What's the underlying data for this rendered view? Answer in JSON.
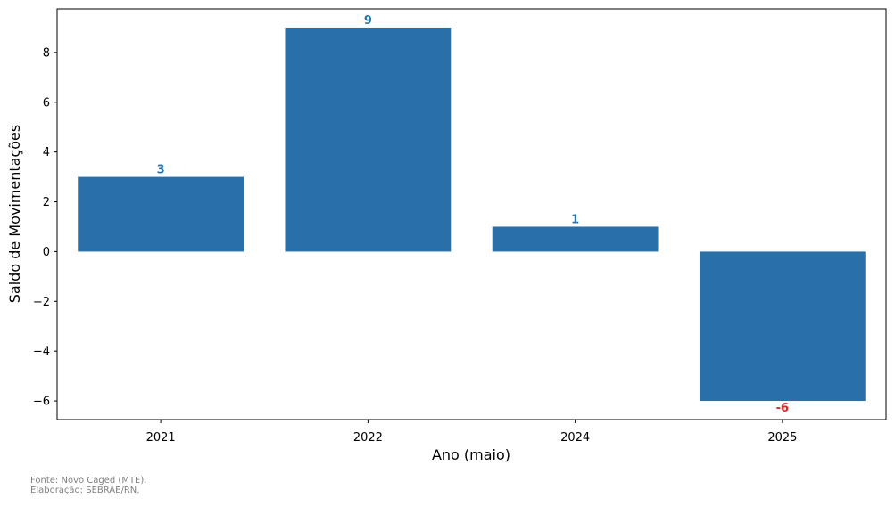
{
  "chart_data": {
    "type": "bar",
    "categories": [
      "2021",
      "2022",
      "2024",
      "2025"
    ],
    "values": [
      3,
      9,
      1,
      -6
    ],
    "data_labels": [
      "3",
      "9",
      "1",
      "-6"
    ],
    "xlabel": "Ano (maio)",
    "ylabel": "Saldo de Movimentações",
    "ylim": [
      -6.75,
      9.75
    ],
    "yticks": [
      8,
      6,
      4,
      2,
      0,
      -2,
      -4,
      -6
    ],
    "ytick_labels": [
      "8",
      "6",
      "4",
      "2",
      "0",
      "−2",
      "−4",
      "−6"
    ],
    "grid": false,
    "bar_color": "#2a70a8",
    "positive_label_color": "#1f77b4",
    "negative_label_color": "#d62728"
  },
  "footer": {
    "source": "Fonte: Novo Caged (MTE).",
    "credit": "Elaboração: SEBRAE/RN."
  }
}
